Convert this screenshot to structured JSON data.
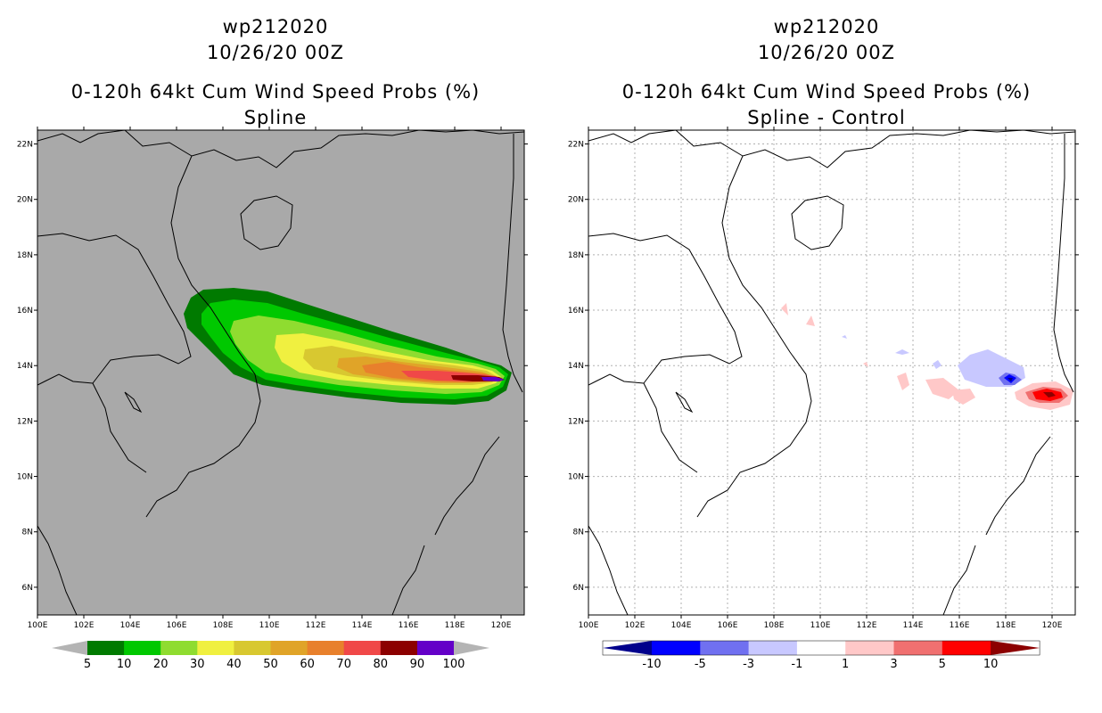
{
  "panels": [
    {
      "id": "left",
      "title_lines": [
        "wp212020",
        "10/26/20 00Z",
        "0-120h 64kt Cum Wind Speed Probs (%)",
        "Spline"
      ],
      "background": "#a9a9a9",
      "lat_labels": [
        "22N",
        "20N",
        "18N",
        "16N",
        "14N",
        "12N",
        "10N",
        "8N",
        "6N"
      ],
      "lon_labels": [
        "100E",
        "102E",
        "104E",
        "106E",
        "108E",
        "110E",
        "112E",
        "114E",
        "116E",
        "118E",
        "120E"
      ],
      "grid": false,
      "colorbar": {
        "labels": [
          "5",
          "10",
          "20",
          "30",
          "40",
          "50",
          "60",
          "70",
          "80",
          "90",
          "100"
        ],
        "colors": [
          "#007a00",
          "#00c800",
          "#8fdc30",
          "#f0f040",
          "#d8c830",
          "#e0a428",
          "#e8802c",
          "#f04848",
          "#8c0000",
          "#6400c8"
        ],
        "end_color": "#b4b4b4"
      }
    },
    {
      "id": "right",
      "title_lines": [
        "wp212020",
        "10/26/20 00Z",
        "0-120h 64kt Cum Wind Speed Probs (%)",
        "Spline - Control"
      ],
      "background": "#ffffff",
      "lat_labels": [
        "22N",
        "20N",
        "18N",
        "16N",
        "14N",
        "12N",
        "10N",
        "8N",
        "6N"
      ],
      "lon_labels": [
        "100E",
        "102E",
        "104E",
        "106E",
        "108E",
        "110E",
        "112E",
        "114E",
        "116E",
        "118E",
        "120E"
      ],
      "grid": true,
      "colorbar": {
        "labels": [
          "-10",
          "-5",
          "-3",
          "-1",
          "1",
          "3",
          "5",
          "10"
        ],
        "colors": [
          "#0000ff",
          "#7070f0",
          "#c8c8ff",
          "#ffffff",
          "#ffc8c8",
          "#f07070",
          "#ff0000"
        ],
        "left_end_color": "#00008c",
        "right_end_color": "#8c0000"
      }
    }
  ],
  "map_extent": {
    "lon_min": 100,
    "lon_max": 121,
    "lat_min": 5,
    "lat_max": 22.5
  }
}
